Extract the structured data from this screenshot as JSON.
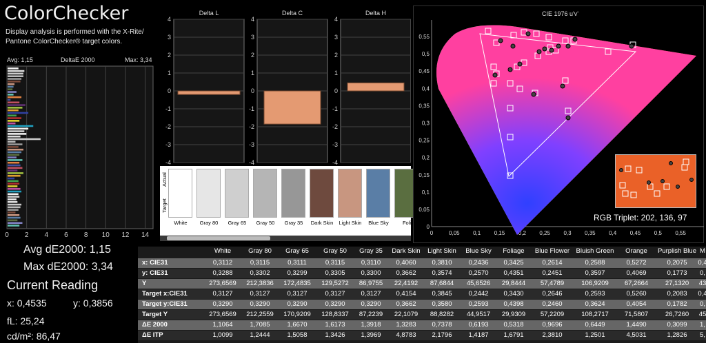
{
  "title": "ColorChecker",
  "description": "Display analysis is performed with the X-Rite/ Pantone ColorChecker® target colors.",
  "deltae_panel": {
    "avg_label": "Avg: 1,15",
    "title": "DeltaE 2000",
    "max_label": "Max: 3,34",
    "axis_ticks": [
      "0",
      "2",
      "4",
      "6",
      "8",
      "10",
      "12",
      "14"
    ]
  },
  "delta_panels": [
    {
      "title": "Delta L",
      "value": -0.2
    },
    {
      "title": "Delta C",
      "value": -1.85
    },
    {
      "title": "Delta H",
      "value": 0.45
    }
  ],
  "delta_ticks": [
    "4",
    "3",
    "2",
    "1",
    "0",
    "-1",
    "-2",
    "-3",
    "-4"
  ],
  "swatch_labels": {
    "actual": "Actual",
    "target": "Target"
  },
  "swatches": [
    {
      "name": "White",
      "color": "#ffffff"
    },
    {
      "name": "Gray 80",
      "color": "#e6e6e6"
    },
    {
      "name": "Gray 65",
      "color": "#cfcfcf"
    },
    {
      "name": "Gray 50",
      "color": "#b5b5b5"
    },
    {
      "name": "Gray 35",
      "color": "#979797"
    },
    {
      "name": "Dark Skin",
      "color": "#6e4a3e"
    },
    {
      "name": "Light Skin",
      "color": "#c89680"
    },
    {
      "name": "Blue Sky",
      "color": "#5a7ea6"
    },
    {
      "name": "Foli",
      "color": "#5a6e40"
    }
  ],
  "metrics": {
    "avg": "Avg dE2000: 1,15",
    "max": "Max dE2000: 3,34"
  },
  "current_reading": {
    "title": "Current Reading",
    "x": "x: 0,4535",
    "y": "y: 0,3856",
    "fl": "fL: 25,24",
    "cdm2": "cd/m²: 86,47"
  },
  "cie": {
    "title": "CIE 1976 u'v'",
    "x_ticks": [
      "0",
      "0,05",
      "0,1",
      "0,15",
      "0,2",
      "0,25",
      "0,3",
      "0,35",
      "0,4",
      "0,45",
      "0,5",
      "0,55"
    ],
    "y_ticks": [
      "0,55",
      "0,5",
      "0,45",
      "0,4",
      "0,35",
      "0,3",
      "0,25",
      "0,2",
      "0,15",
      "0,1",
      "0,05",
      "0"
    ],
    "rgb_triplet": "RGB Triplet: 202, 136, 97",
    "zoom_color": "#ea6128"
  },
  "table": {
    "columns": [
      "White",
      "Gray 80",
      "Gray 65",
      "Gray 50",
      "Gray 35",
      "Dark Skin",
      "Light Skin",
      "Blue Sky",
      "Foliage",
      "Blue Flower",
      "Bluish Green",
      "Orange",
      "Purplish Blue",
      "M"
    ],
    "rows": [
      {
        "label": "x: CIE31",
        "values": [
          "0,3112",
          "0,3115",
          "0,3111",
          "0,3115",
          "0,3110",
          "0,4060",
          "0,3810",
          "0,2436",
          "0,3425",
          "0,2614",
          "0,2588",
          "0,5272",
          "0,2075",
          "0,4"
        ]
      },
      {
        "label": "y: CIE31",
        "values": [
          "0,3288",
          "0,3302",
          "0,3299",
          "0,3305",
          "0,3300",
          "0,3662",
          "0,3574",
          "0,2570",
          "0,4351",
          "0,2451",
          "0,3597",
          "0,4069",
          "0,1773",
          "0,"
        ]
      },
      {
        "label": "Y",
        "values": [
          "273,6569",
          "212,3836",
          "172,4835",
          "129,5272",
          "86,9755",
          "22,4192",
          "87,6844",
          "45,6526",
          "29,8444",
          "57,4789",
          "106,9209",
          "67,2664",
          "27,1320",
          "43"
        ]
      },
      {
        "label": "Target x:CIE31",
        "values": [
          "0,3127",
          "0,3127",
          "0,3127",
          "0,3127",
          "0,3127",
          "0,4154",
          "0,3845",
          "0,2442",
          "0,3430",
          "0,2646",
          "0,2593",
          "0,5260",
          "0,2083",
          "0,4"
        ]
      },
      {
        "label": "Target y:CIE31",
        "values": [
          "0,3290",
          "0,3290",
          "0,3290",
          "0,3290",
          "0,3290",
          "0,3662",
          "0,3580",
          "0,2593",
          "0,4398",
          "0,2460",
          "0,3624",
          "0,4054",
          "0,1782",
          "0,"
        ]
      },
      {
        "label": "Target Y",
        "values": [
          "273,6569",
          "212,2559",
          "170,9209",
          "128,8337",
          "87,2239",
          "22,1079",
          "88,8282",
          "44,9517",
          "29,9309",
          "57,2209",
          "108,2717",
          "71,5807",
          "26,7260",
          "45"
        ]
      },
      {
        "label": "ΔE 2000",
        "values": [
          "1,1064",
          "1,7085",
          "1,6670",
          "1,6173",
          "1,3918",
          "1,3283",
          "0,7378",
          "0,6193",
          "0,5318",
          "0,9696",
          "0,6449",
          "1,4490",
          "0,3099",
          "1,"
        ]
      },
      {
        "label": "ΔE ITP",
        "values": [
          "1,0099",
          "1,2444",
          "1,5058",
          "1,3426",
          "1,3969",
          "4,8783",
          "2,1796",
          "1,4187",
          "1,6791",
          "2,3810",
          "1,2501",
          "4,5031",
          "1,2826",
          "5,"
        ]
      }
    ]
  }
}
